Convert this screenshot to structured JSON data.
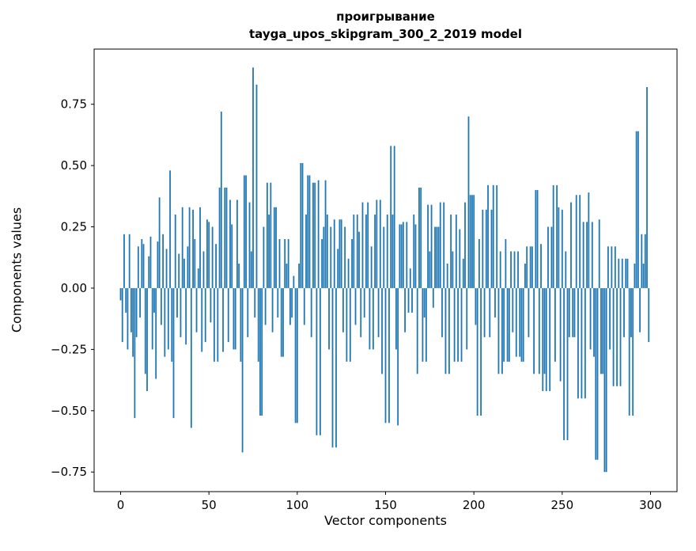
{
  "chart_data": {
    "type": "bar",
    "title": "проигрывание",
    "subtitle": "tayga_upos_skipgram_300_2_2019 model",
    "xlabel": "Vector components",
    "ylabel": "Components values",
    "xlim": [
      -15,
      315
    ],
    "ylim": [
      -0.83,
      0.975
    ],
    "xticks": [
      0,
      50,
      100,
      150,
      200,
      250,
      300
    ],
    "yticks": [
      -0.75,
      -0.5,
      -0.25,
      0.0,
      0.25,
      0.5,
      0.75
    ],
    "yticklabels": [
      "−0.75",
      "−0.50",
      "−0.25",
      "0.00",
      "0.25",
      "0.50",
      "0.75"
    ],
    "grid": false,
    "legend": "none",
    "bar_color": "#1f77b4",
    "values": [
      -0.05,
      -0.22,
      0.22,
      -0.1,
      -0.25,
      0.22,
      -0.18,
      -0.28,
      -0.53,
      -0.2,
      0.17,
      -0.12,
      0.2,
      0.18,
      -0.35,
      -0.42,
      0.13,
      0.21,
      -0.25,
      -0.1,
      -0.37,
      0.19,
      0.37,
      -0.15,
      0.22,
      -0.28,
      0.16,
      -0.25,
      0.48,
      -0.3,
      -0.53,
      0.3,
      -0.12,
      0.14,
      -0.2,
      0.33,
      0.12,
      -0.23,
      0.17,
      0.33,
      -0.57,
      0.32,
      0.2,
      -0.18,
      0.08,
      0.33,
      -0.26,
      0.15,
      -0.22,
      0.28,
      0.27,
      -0.14,
      0.25,
      -0.3,
      0.18,
      -0.3,
      0.41,
      0.72,
      -0.26,
      0.41,
      0.41,
      -0.22,
      0.36,
      0.26,
      -0.25,
      -0.25,
      0.36,
      0.1,
      -0.3,
      -0.67,
      0.46,
      0.46,
      -0.2,
      0.35,
      0.15,
      0.9,
      -0.12,
      0.83,
      -0.3,
      -0.52,
      -0.52,
      0.25,
      -0.15,
      0.43,
      0.3,
      0.43,
      -0.18,
      0.33,
      0.33,
      -0.12,
      0.2,
      -0.28,
      -0.28,
      0.2,
      0.1,
      0.2,
      -0.15,
      -0.12,
      0.05,
      -0.55,
      -0.55,
      0.1,
      0.51,
      0.51,
      -0.15,
      0.3,
      0.46,
      0.46,
      -0.2,
      0.43,
      0.43,
      -0.6,
      0.44,
      -0.6,
      0.2,
      0.25,
      0.44,
      0.3,
      -0.25,
      0.25,
      -0.65,
      0.28,
      -0.65,
      0.16,
      0.28,
      0.28,
      -0.18,
      0.25,
      -0.3,
      0.12,
      -0.3,
      0.2,
      0.3,
      -0.15,
      0.3,
      0.23,
      -0.2,
      0.35,
      -0.12,
      0.3,
      0.35,
      -0.25,
      0.17,
      -0.25,
      0.3,
      0.36,
      -0.2,
      0.36,
      -0.35,
      0.25,
      -0.55,
      0.3,
      -0.55,
      0.58,
      0.3,
      0.58,
      -0.25,
      -0.56,
      0.26,
      0.26,
      0.27,
      -0.18,
      0.27,
      -0.1,
      0.08,
      -0.1,
      0.3,
      0.26,
      -0.35,
      0.41,
      0.41,
      -0.3,
      -0.12,
      -0.3,
      0.34,
      0.15,
      0.34,
      -0.08,
      0.25,
      0.25,
      0.25,
      0.35,
      -0.2,
      0.35,
      -0.35,
      0.1,
      -0.35,
      0.3,
      0.15,
      -0.3,
      0.3,
      -0.3,
      0.24,
      -0.3,
      0.12,
      0.35,
      -0.25,
      0.7,
      0.38,
      0.38,
      0.38,
      -0.15,
      -0.52,
      0.2,
      -0.52,
      0.32,
      -0.2,
      0.32,
      0.42,
      -0.2,
      0.32,
      0.42,
      -0.12,
      0.42,
      -0.35,
      0.15,
      -0.35,
      -0.3,
      0.2,
      -0.3,
      -0.3,
      0.15,
      -0.18,
      0.15,
      -0.28,
      0.15,
      -0.28,
      -0.3,
      -0.3,
      0.1,
      0.17,
      -0.2,
      0.17,
      0.17,
      -0.35,
      0.4,
      0.4,
      -0.35,
      0.18,
      -0.42,
      -0.35,
      -0.42,
      0.25,
      -0.42,
      0.25,
      0.42,
      -0.3,
      0.42,
      0.33,
      -0.38,
      0.32,
      -0.62,
      0.15,
      -0.62,
      -0.2,
      0.35,
      -0.2,
      -0.2,
      0.38,
      -0.45,
      0.38,
      -0.45,
      0.27,
      -0.45,
      0.27,
      0.39,
      -0.25,
      0.27,
      -0.28,
      -0.7,
      -0.7,
      0.28,
      -0.35,
      -0.35,
      -0.75,
      -0.75,
      0.17,
      -0.25,
      0.17,
      -0.4,
      0.17,
      -0.4,
      0.12,
      -0.4,
      0.12,
      -0.2,
      0.12,
      0.12,
      -0.52,
      -0.2,
      -0.52,
      0.1,
      0.64,
      0.64,
      -0.18,
      0.22,
      0.1,
      0.22,
      0.82,
      -0.22
    ]
  }
}
